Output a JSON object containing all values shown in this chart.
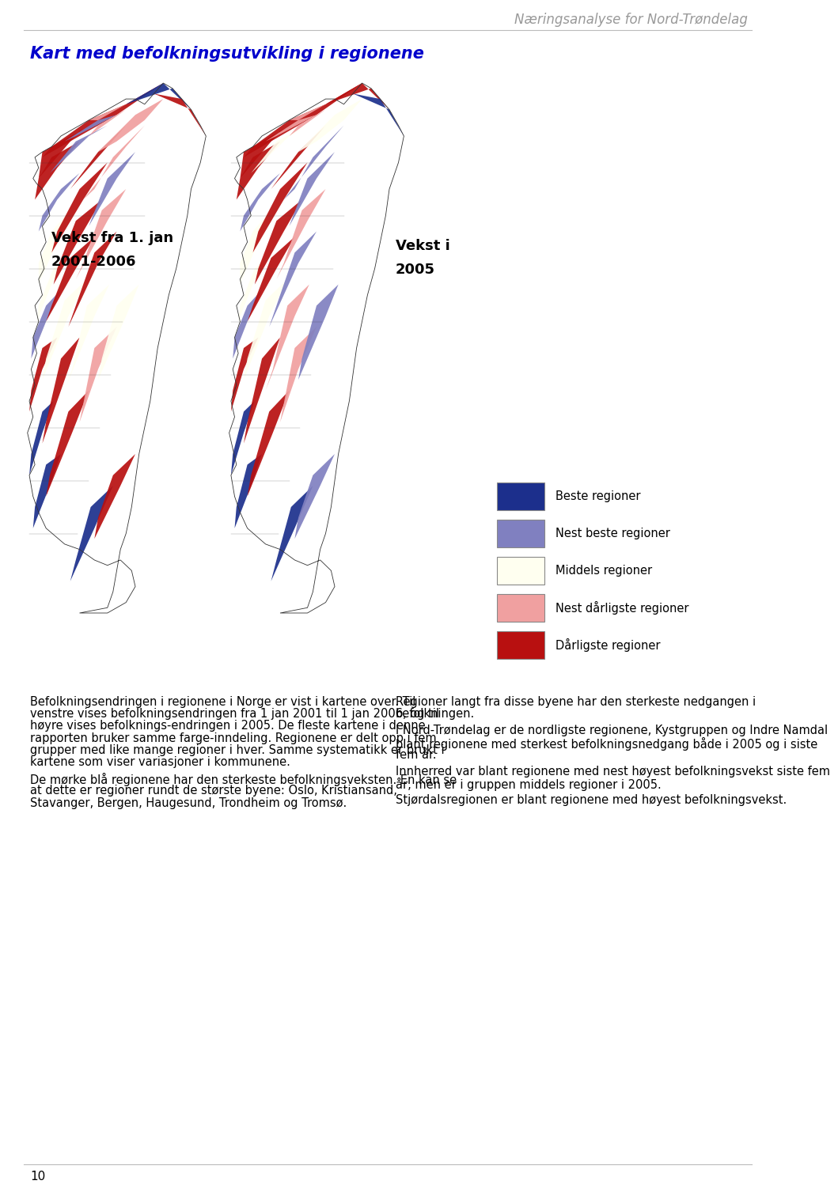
{
  "header_text": "Næringsanalyse for Nord-Trøndelag",
  "page_title": "Kart med befolkningsutvikling i regionene",
  "map_label_left_line1": "Vekst fra 1. jan",
  "map_label_left_line2": "2001-2006",
  "map_label_right_line1": "Vekst i",
  "map_label_right_line2": "2005",
  "legend_items": [
    {
      "color": "#1c2f8c",
      "label": "Beste regioner"
    },
    {
      "color": "#8080c0",
      "label": "Nest beste regioner"
    },
    {
      "color": "#fffff0",
      "label": "Middels regioner"
    },
    {
      "color": "#f0a0a0",
      "label": "Nest dårligste regioner"
    },
    {
      "color": "#b81010",
      "label": "Dårligste regioner"
    }
  ],
  "body_left_paragraphs": [
    "Befolkningsendringen i regionene i Norge er vist i kartene over.  Til venstre vises befolkningsendringen fra 1 jan 2001 til 1 jan 2006, og til høyre vises befolknings-endringen i 2005.  De fleste kartene i denne rapporten bruker samme farge-inndeling.  Regionene er delt opp i fem grupper med like mange regioner i hver. Samme systematikk er brukt i kartene som viser variasjoner i kommunene.",
    "De mørke blå regionene har den sterkeste befolkningsveksten.  En kan se at dette er regioner rundt de største byene: Oslo, Kristiansand, Stavanger, Bergen, Haugesund, Trondheim og Tromsø."
  ],
  "body_right_paragraphs": [
    "Regioner langt fra disse byene har den sterkeste nedgangen i befolkningen.",
    "I Nord-Trøndelag er de nordligste regionene, Kystgruppen og Indre Namdal blant regionene med sterkest befolkningsnedgang både i 2005 og i siste fem år.",
    "Innherred var blant regionene med nest høyest befolkningsvekst siste fem år, men er i gruppen middels regioner i 2005.",
    "Stjørdalsregionen er blant regionene med høyest befolkningsvekst."
  ],
  "page_number": "10",
  "bg_color": "#ffffff",
  "header_color": "#999999",
  "title_color": "#0000cc",
  "body_fontsize": 10.5,
  "header_fontsize": 12,
  "title_fontsize": 15
}
